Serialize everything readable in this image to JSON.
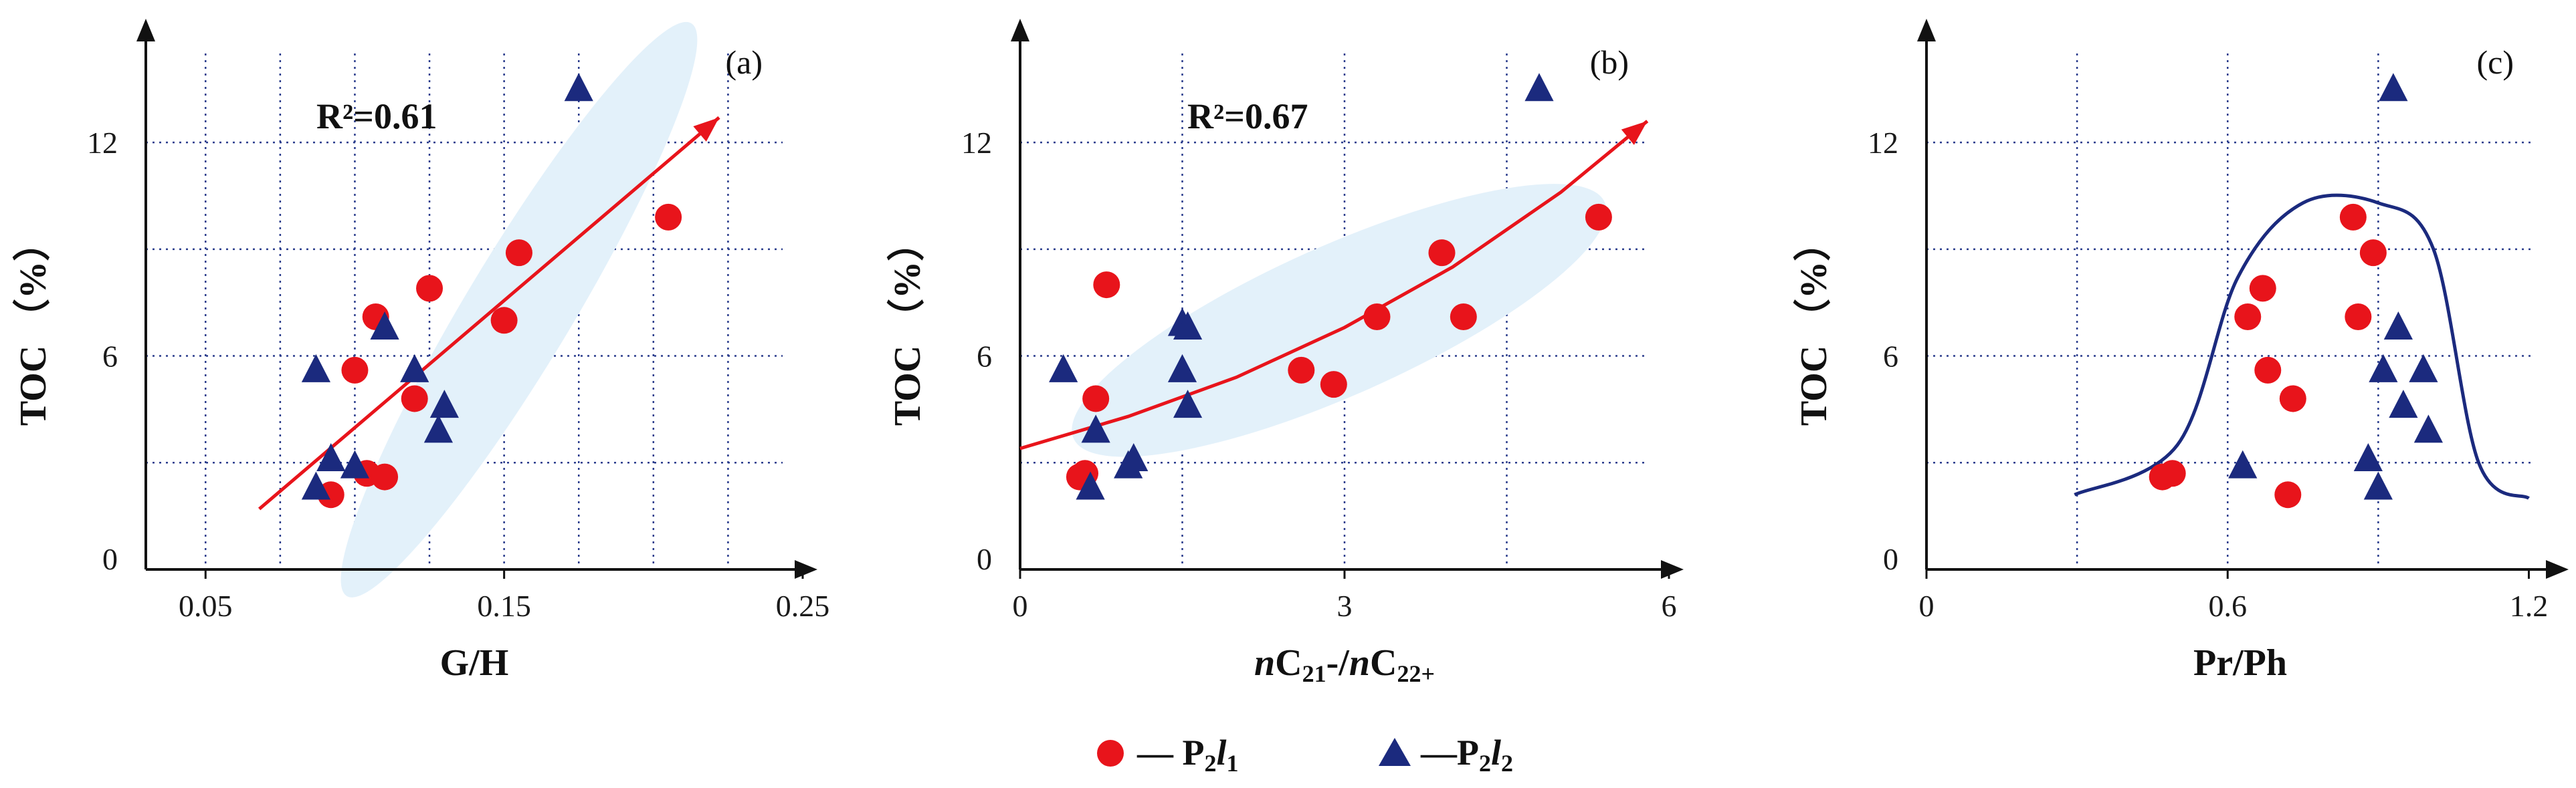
{
  "colors": {
    "p2l1": "#e8141b",
    "p2l2": "#1b2a7e",
    "trend": "#e8141b",
    "ellipse": "#e3f1fa",
    "envelope": "#1b2a7e",
    "grid": "#2a3c8c",
    "axis": "#111111"
  },
  "legend": {
    "p2l1": {
      "label": "— P",
      "sub1": "2",
      "italic": "l",
      "sub2": "1"
    },
    "p2l2": {
      "label": "—P",
      "sub1": "2",
      "italic": "l",
      "sub2": "2"
    }
  },
  "chart_data": [
    {
      "type": "scatter",
      "panel": "(a)",
      "xlabel": "G/H",
      "ylabel": "TOC （%）",
      "xlim": [
        0.03,
        0.25
      ],
      "ylim": [
        0,
        14.5
      ],
      "xticks": [
        0.05,
        0.15,
        0.25
      ],
      "xtick_labels": [
        "0.05",
        "0.15",
        "0.25"
      ],
      "xgrid": [
        0.05,
        0.075,
        0.1,
        0.125,
        0.15,
        0.175,
        0.2,
        0.225
      ],
      "yticks": [
        0,
        6,
        12
      ],
      "ytick_labels": [
        "0",
        "6",
        "12"
      ],
      "ygrid": [
        3,
        6,
        9,
        12
      ],
      "annotation": "R²=0.61",
      "trend": {
        "kind": "line",
        "x": [
          0.068,
          0.222
        ],
        "y": [
          1.7,
          12.7
        ]
      },
      "ellipse": {
        "cx": 0.155,
        "cy": 7.3,
        "rx": 0.112,
        "ry": 1.5,
        "angle_deg": -59
      },
      "series": [
        {
          "name": "P2l1",
          "marker": "circle",
          "x": [
            0.092,
            0.1,
            0.104,
            0.107,
            0.11,
            0.12,
            0.125,
            0.15,
            0.155,
            0.205
          ],
          "y": [
            2.1,
            5.6,
            2.7,
            7.1,
            2.6,
            4.8,
            7.9,
            7.0,
            8.9,
            9.9
          ]
        },
        {
          "name": "P2l2",
          "marker": "triangle",
          "x": [
            0.087,
            0.087,
            0.092,
            0.1,
            0.11,
            0.12,
            0.128,
            0.13,
            0.175
          ],
          "y": [
            5.6,
            2.3,
            3.1,
            2.9,
            6.8,
            5.6,
            3.9,
            4.6,
            13.5
          ]
        }
      ]
    },
    {
      "type": "scatter",
      "panel": "(b)",
      "xlabel": "nC21-/nC22+",
      "ylabel": "TOC （%）",
      "xlim": [
        0,
        6
      ],
      "ylim": [
        0,
        14.5
      ],
      "xticks": [
        0,
        3,
        6
      ],
      "xtick_labels": [
        "0",
        "3",
        "6"
      ],
      "xgrid": [
        1.5,
        3,
        4.5
      ],
      "yticks": [
        0,
        6,
        12
      ],
      "ytick_labels": [
        "0",
        "6",
        "12"
      ],
      "ygrid": [
        3,
        6,
        9,
        12
      ],
      "annotation": "R²=0.67",
      "trend": {
        "kind": "curve",
        "x": [
          0,
          1,
          2,
          3,
          4,
          5,
          5.8
        ],
        "y": [
          3.4,
          4.3,
          5.4,
          6.8,
          8.5,
          10.6,
          12.6
        ]
      },
      "ellipse": {
        "cx": 2.95,
        "cy": 7.0,
        "rx": 3.2,
        "ry": 2.1,
        "angle_deg": -24
      },
      "series": [
        {
          "name": "P2l1",
          "marker": "circle",
          "x": [
            0.55,
            0.6,
            0.7,
            0.8,
            2.6,
            2.9,
            3.3,
            3.9,
            4.1,
            5.35
          ],
          "y": [
            2.6,
            2.7,
            4.8,
            8.0,
            5.6,
            5.2,
            7.1,
            8.9,
            7.1,
            9.9
          ]
        },
        {
          "name": "P2l2",
          "marker": "triangle",
          "x": [
            0.4,
            0.65,
            0.7,
            1.0,
            1.05,
            1.5,
            1.5,
            1.55,
            1.55,
            4.8
          ],
          "y": [
            5.6,
            2.3,
            3.9,
            2.9,
            3.1,
            5.6,
            6.9,
            4.6,
            6.8,
            13.5
          ]
        }
      ]
    },
    {
      "type": "scatter",
      "panel": "(c)",
      "xlabel": "Pr/Ph",
      "ylabel": "TOC （%）",
      "xlim": [
        0,
        1.25
      ],
      "ylim": [
        0,
        14.5
      ],
      "xticks": [
        0,
        0.6,
        1.2
      ],
      "xtick_labels": [
        "0",
        "0.6",
        "1.2"
      ],
      "xgrid": [
        0.3,
        0.6,
        0.9
      ],
      "yticks": [
        0,
        6,
        12
      ],
      "ytick_labels": [
        "0",
        "6",
        "12"
      ],
      "ygrid": [
        3,
        6,
        9,
        12
      ],
      "annotation": "",
      "envelope": {
        "x": [
          0.295,
          0.5,
          0.62,
          0.75,
          0.9,
          1.01,
          1.1,
          1.2
        ],
        "y": [
          2.1,
          3.5,
          8.2,
          10.3,
          10.3,
          9.0,
          3.0,
          2.0
        ]
      },
      "series": [
        {
          "name": "P2l1",
          "marker": "circle",
          "x": [
            0.47,
            0.49,
            0.64,
            0.67,
            0.68,
            0.72,
            0.73,
            0.85,
            0.86,
            0.89
          ],
          "y": [
            2.6,
            2.7,
            7.1,
            7.9,
            5.6,
            2.1,
            4.8,
            9.9,
            7.1,
            8.9
          ]
        },
        {
          "name": "P2l2",
          "marker": "triangle",
          "x": [
            0.63,
            0.88,
            0.9,
            0.91,
            0.93,
            0.94,
            0.95,
            0.99,
            1.0
          ],
          "y": [
            2.9,
            3.1,
            2.3,
            5.6,
            13.5,
            6.8,
            4.6,
            5.6,
            3.9
          ]
        }
      ]
    }
  ]
}
